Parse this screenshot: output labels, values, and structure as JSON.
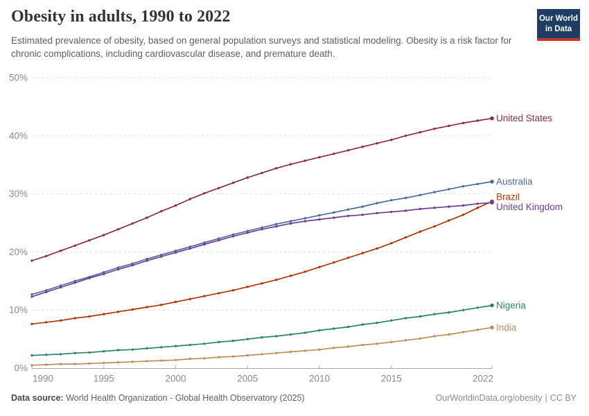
{
  "header": {
    "title": "Obesity in adults, 1990 to 2022",
    "subtitle": "Estimated prevalence of obesity, based on general population surveys and statistical modeling. Obesity is a risk factor for chronic complications, including cardiovascular disease, and premature death."
  },
  "logo": {
    "line1": "Our World",
    "line2": "in Data",
    "bg_color": "#1D3D63",
    "accent_color": "#C4372C"
  },
  "footer": {
    "source_label": "Data source:",
    "source_value": "World Health Organization - Global Health Observatory (2025)",
    "link": "OurWorldinData.org/obesity",
    "separator": "|",
    "license": "CC BY"
  },
  "chart_data": {
    "type": "line",
    "title": "Obesity in adults, 1990 to 2022",
    "xlabel": "",
    "ylabel": "",
    "xlim": [
      1990,
      2022
    ],
    "ylim": [
      0,
      50
    ],
    "xticks": [
      1990,
      1995,
      2000,
      2005,
      2010,
      2015,
      2022
    ],
    "yticks": [
      0,
      10,
      20,
      30,
      40,
      50
    ],
    "ytick_suffix": "%",
    "grid": "horizontal-dashed",
    "legend_position": "labels-at-line-ends-right",
    "marker": "dot-every-year",
    "x": [
      1990,
      1991,
      1992,
      1993,
      1994,
      1995,
      1996,
      1997,
      1998,
      1999,
      2000,
      2001,
      2002,
      2003,
      2004,
      2005,
      2006,
      2007,
      2008,
      2009,
      2010,
      2011,
      2012,
      2013,
      2014,
      2015,
      2016,
      2017,
      2018,
      2019,
      2020,
      2021,
      2022
    ],
    "series": [
      {
        "name": "United States",
        "color": "#883039",
        "values": [
          18.5,
          19.3,
          20.2,
          21.1,
          22.0,
          22.9,
          23.9,
          24.9,
          25.9,
          27.0,
          28.0,
          29.1,
          30.1,
          31.0,
          31.9,
          32.8,
          33.6,
          34.4,
          35.1,
          35.7,
          36.3,
          36.9,
          37.5,
          38.1,
          38.7,
          39.3,
          40.0,
          40.6,
          41.2,
          41.7,
          42.2,
          42.6,
          43.0
        ]
      },
      {
        "name": "Australia",
        "color": "#4C6A9C",
        "values": [
          12.7,
          13.4,
          14.2,
          15.0,
          15.7,
          16.5,
          17.3,
          18.0,
          18.8,
          19.5,
          20.2,
          20.9,
          21.6,
          22.3,
          23.0,
          23.6,
          24.2,
          24.8,
          25.3,
          25.8,
          26.3,
          26.8,
          27.3,
          27.8,
          28.4,
          28.9,
          29.3,
          29.8,
          30.3,
          30.8,
          31.3,
          31.7,
          32.1
        ]
      },
      {
        "name": "Brazil",
        "color": "#B13507",
        "values": [
          7.6,
          7.9,
          8.2,
          8.6,
          8.9,
          9.3,
          9.7,
          10.1,
          10.5,
          10.9,
          11.4,
          11.9,
          12.4,
          12.9,
          13.4,
          14.0,
          14.6,
          15.2,
          15.9,
          16.6,
          17.4,
          18.2,
          19.0,
          19.8,
          20.6,
          21.5,
          22.5,
          23.5,
          24.4,
          25.4,
          26.4,
          27.6,
          28.7
        ]
      },
      {
        "name": "United Kingdom",
        "color": "#6D3E91",
        "values": [
          12.3,
          13.1,
          13.9,
          14.7,
          15.5,
          16.2,
          17.0,
          17.7,
          18.5,
          19.2,
          19.9,
          20.6,
          21.3,
          22.0,
          22.7,
          23.3,
          23.9,
          24.4,
          24.9,
          25.3,
          25.6,
          25.9,
          26.2,
          26.4,
          26.7,
          26.9,
          27.1,
          27.4,
          27.6,
          27.8,
          28.0,
          28.3,
          28.5
        ]
      },
      {
        "name": "Nigeria",
        "color": "#2C8465",
        "values": [
          2.2,
          2.3,
          2.4,
          2.6,
          2.7,
          2.9,
          3.1,
          3.2,
          3.4,
          3.6,
          3.8,
          4.0,
          4.2,
          4.5,
          4.7,
          5.0,
          5.3,
          5.5,
          5.8,
          6.1,
          6.5,
          6.8,
          7.1,
          7.5,
          7.8,
          8.2,
          8.6,
          8.9,
          9.3,
          9.6,
          10.0,
          10.4,
          10.8
        ]
      },
      {
        "name": "India",
        "color": "#BC8E5A",
        "values": [
          0.5,
          0.6,
          0.7,
          0.7,
          0.8,
          0.9,
          1.0,
          1.1,
          1.2,
          1.3,
          1.4,
          1.6,
          1.7,
          1.9,
          2.0,
          2.2,
          2.4,
          2.6,
          2.8,
          3.0,
          3.2,
          3.5,
          3.7,
          4.0,
          4.2,
          4.5,
          4.8,
          5.1,
          5.5,
          5.8,
          6.2,
          6.6,
          7.0
        ]
      }
    ]
  }
}
